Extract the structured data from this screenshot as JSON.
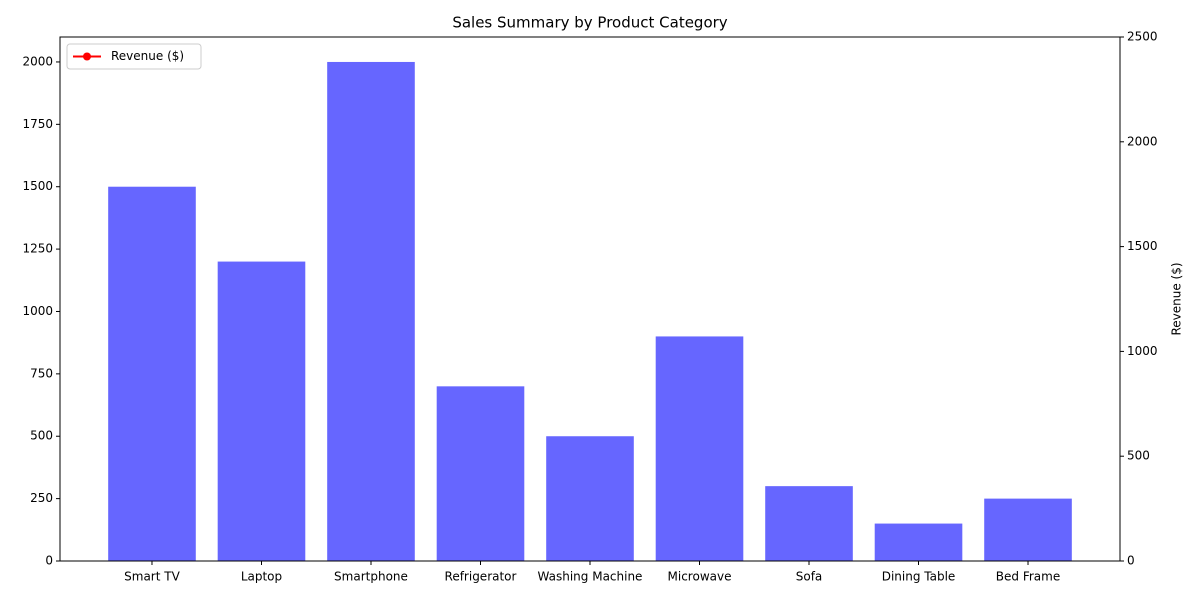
{
  "chart_data": {
    "type": "bar",
    "title": "Sales Summary by Product Category",
    "categories": [
      "Smart TV",
      "Laptop",
      "Smartphone",
      "Refrigerator",
      "Washing Machine",
      "Microwave",
      "Sofa",
      "Dining Table",
      "Bed Frame"
    ],
    "values": [
      1500,
      1200,
      2000,
      700,
      500,
      900,
      300,
      150,
      250
    ],
    "color": "#6666ff",
    "ylim": [
      0,
      2100
    ],
    "yticks": [
      0,
      250,
      500,
      750,
      1000,
      1250,
      1500,
      1750,
      2000
    ],
    "y2label": "Revenue ($)",
    "y2lim": [
      0,
      2500
    ],
    "y2ticks": [
      0,
      500,
      1000,
      1500,
      2000,
      2500
    ],
    "series": [
      {
        "name": "Revenue ($)",
        "color": "red",
        "axis": "y2",
        "values": [
          null,
          null,
          null,
          null,
          null,
          null,
          null,
          null,
          null
        ]
      }
    ],
    "legend": "upper left",
    "grid": false
  }
}
